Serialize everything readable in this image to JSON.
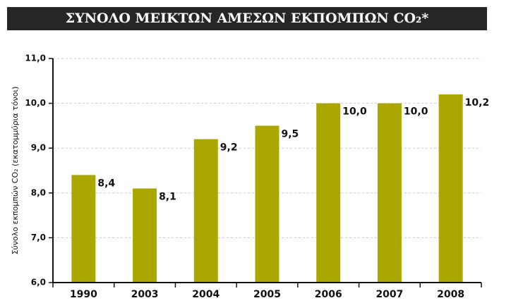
{
  "chart_data": {
    "type": "bar",
    "title": "ΣΥΝΟΛΟ ΜΕΙΚΤΩΝ ΑΜΕΣΩΝ ΕΚΠΟΜΠΩΝ CO₂*",
    "y_label": "Σύνολο εκπομπών CO₂ (εκατομμύρια τόνοι)",
    "categories": [
      "1990",
      "2003",
      "2004",
      "2005",
      "2006",
      "2007",
      "2008"
    ],
    "values": [
      8.4,
      8.1,
      9.2,
      9.5,
      10.0,
      10.0,
      10.2
    ],
    "value_labels": [
      "8,4",
      "8,1",
      "9,2",
      "9,5",
      "10,0",
      "10,0",
      "10,2"
    ],
    "color": "#a9a700",
    "ylim": [
      6,
      11
    ],
    "yticks": [
      {
        "value": 6,
        "label": "6,0"
      },
      {
        "value": 7,
        "label": "7,0"
      },
      {
        "value": 8,
        "label": "8,0"
      },
      {
        "value": 9,
        "label": "9,0"
      },
      {
        "value": 10,
        "label": "10,0"
      },
      {
        "value": 11,
        "label": "11,0"
      }
    ],
    "grid": true
  }
}
